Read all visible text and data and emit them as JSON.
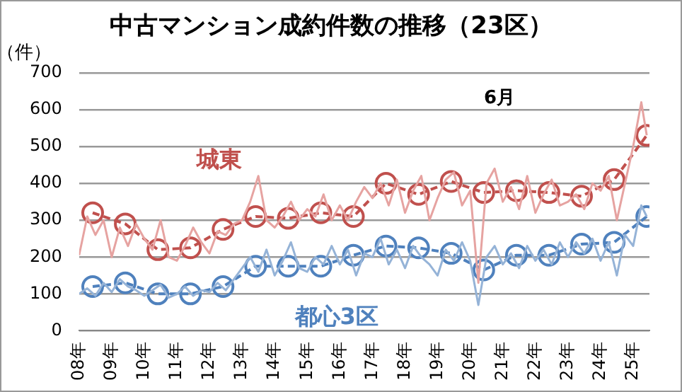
{
  "chart_data": {
    "type": "line",
    "title": "中古マンション成約件数の推移（23区）",
    "ylabel": "（件）",
    "annotations": [
      "6月"
    ],
    "x": [
      "2008-01",
      "2008-04",
      "2008-07",
      "2008-10",
      "2009-01",
      "2009-04",
      "2009-07",
      "2009-10",
      "2010-01",
      "2010-04",
      "2010-07",
      "2010-10",
      "2011-01",
      "2011-04",
      "2011-07",
      "2011-10",
      "2012-01",
      "2012-04",
      "2012-07",
      "2012-10",
      "2013-01",
      "2013-04",
      "2013-07",
      "2013-10",
      "2014-01",
      "2014-04",
      "2014-07",
      "2014-10",
      "2015-01",
      "2015-04",
      "2015-07",
      "2015-10",
      "2016-01",
      "2016-04",
      "2016-07",
      "2016-10",
      "2017-01",
      "2017-04",
      "2017-07",
      "2017-10",
      "2018-01",
      "2018-04",
      "2018-07",
      "2018-10",
      "2019-01",
      "2019-04",
      "2019-07",
      "2019-10",
      "2020-01",
      "2020-04",
      "2020-07",
      "2020-10",
      "2021-01",
      "2021-04",
      "2021-07",
      "2021-10",
      "2022-01",
      "2022-04",
      "2022-07",
      "2022-10",
      "2023-01",
      "2023-04",
      "2023-07",
      "2023-10",
      "2024-01",
      "2024-04",
      "2024-07",
      "2024-10",
      "2025-01",
      "2025-04",
      "2025-06"
    ],
    "series": [
      {
        "color": "#e6a3a1",
        "marker": "none",
        "line_style": "solid",
        "values": [
          205,
          310,
          260,
          300,
          200,
          280,
          230,
          290,
          250,
          220,
          300,
          200,
          190,
          230,
          280,
          240,
          210,
          270,
          260,
          290,
          300,
          350,
          420,
          300,
          280,
          310,
          350,
          300,
          330,
          310,
          370,
          300,
          340,
          300,
          350,
          390,
          360,
          400,
          340,
          410,
          320,
          380,
          420,
          300,
          360,
          410,
          430,
          340,
          380,
          130,
          400,
          440,
          350,
          390,
          330,
          420,
          320,
          370,
          410,
          340,
          350,
          370,
          330,
          400,
          380,
          420,
          300,
          400,
          500,
          620,
          530
        ]
      },
      {
        "color": "#95b3d7",
        "marker": "none",
        "line_style": "solid",
        "values": [
          100,
          115,
          95,
          130,
          105,
          140,
          120,
          110,
          95,
          110,
          125,
          90,
          100,
          120,
          95,
          110,
          105,
          130,
          110,
          140,
          170,
          200,
          160,
          220,
          150,
          190,
          240,
          170,
          160,
          200,
          180,
          230,
          180,
          220,
          150,
          210,
          200,
          250,
          180,
          220,
          170,
          230,
          200,
          180,
          150,
          220,
          190,
          240,
          190,
          70,
          200,
          230,
          180,
          210,
          170,
          230,
          190,
          220,
          180,
          240,
          200,
          240,
          210,
          250,
          190,
          240,
          150,
          260,
          230,
          340,
          310
        ]
      },
      {
        "name": "城東",
        "color": "#c0504d",
        "marker": "circle",
        "line_style": "dashed",
        "x": [
          "2008-06",
          "2009-06",
          "2010-06",
          "2011-06",
          "2012-06",
          "2013-06",
          "2014-06",
          "2015-06",
          "2016-06",
          "2017-06",
          "2018-06",
          "2019-06",
          "2020-06",
          "2021-06",
          "2022-06",
          "2023-06",
          "2024-06",
          "2025-06"
        ],
        "values": [
          320,
          290,
          220,
          225,
          275,
          310,
          305,
          320,
          310,
          400,
          370,
          405,
          375,
          380,
          375,
          365,
          410,
          530
        ]
      },
      {
        "name": "都心3区",
        "color": "#4f81bd",
        "marker": "circle",
        "line_style": "dashed",
        "x": [
          "2008-06",
          "2009-06",
          "2010-06",
          "2011-06",
          "2012-06",
          "2013-06",
          "2014-06",
          "2015-06",
          "2016-06",
          "2017-06",
          "2018-06",
          "2019-06",
          "2020-06",
          "2021-06",
          "2022-06",
          "2023-06",
          "2024-06",
          "2025-06"
        ],
        "values": [
          120,
          130,
          100,
          100,
          120,
          175,
          175,
          175,
          205,
          230,
          225,
          210,
          165,
          205,
          205,
          235,
          240,
          310
        ]
      }
    ],
    "xlim": [
      "2008-01",
      "2025-07"
    ],
    "xticks": [
      {
        "value": "2008",
        "label": "08年"
      },
      {
        "value": "2009",
        "label": "09年"
      },
      {
        "value": "2010",
        "label": "10年"
      },
      {
        "value": "2011",
        "label": "11年"
      },
      {
        "value": "2012",
        "label": "12年"
      },
      {
        "value": "2013",
        "label": "13年"
      },
      {
        "value": "2014",
        "label": "14年"
      },
      {
        "value": "2015",
        "label": "15年"
      },
      {
        "value": "2016",
        "label": "16年"
      },
      {
        "value": "2017",
        "label": "17年"
      },
      {
        "value": "2018",
        "label": "18年"
      },
      {
        "value": "2019",
        "label": "19年"
      },
      {
        "value": "2020",
        "label": "20年"
      },
      {
        "value": "2021",
        "label": "21年"
      },
      {
        "value": "2022",
        "label": "22年"
      },
      {
        "value": "2023",
        "label": "23年"
      },
      {
        "value": "2024",
        "label": "24年"
      },
      {
        "value": "2025",
        "label": "25年"
      }
    ],
    "ylim": [
      0,
      700
    ],
    "yticks": [
      0,
      100,
      200,
      300,
      400,
      500,
      600,
      700
    ],
    "grid": "y"
  }
}
